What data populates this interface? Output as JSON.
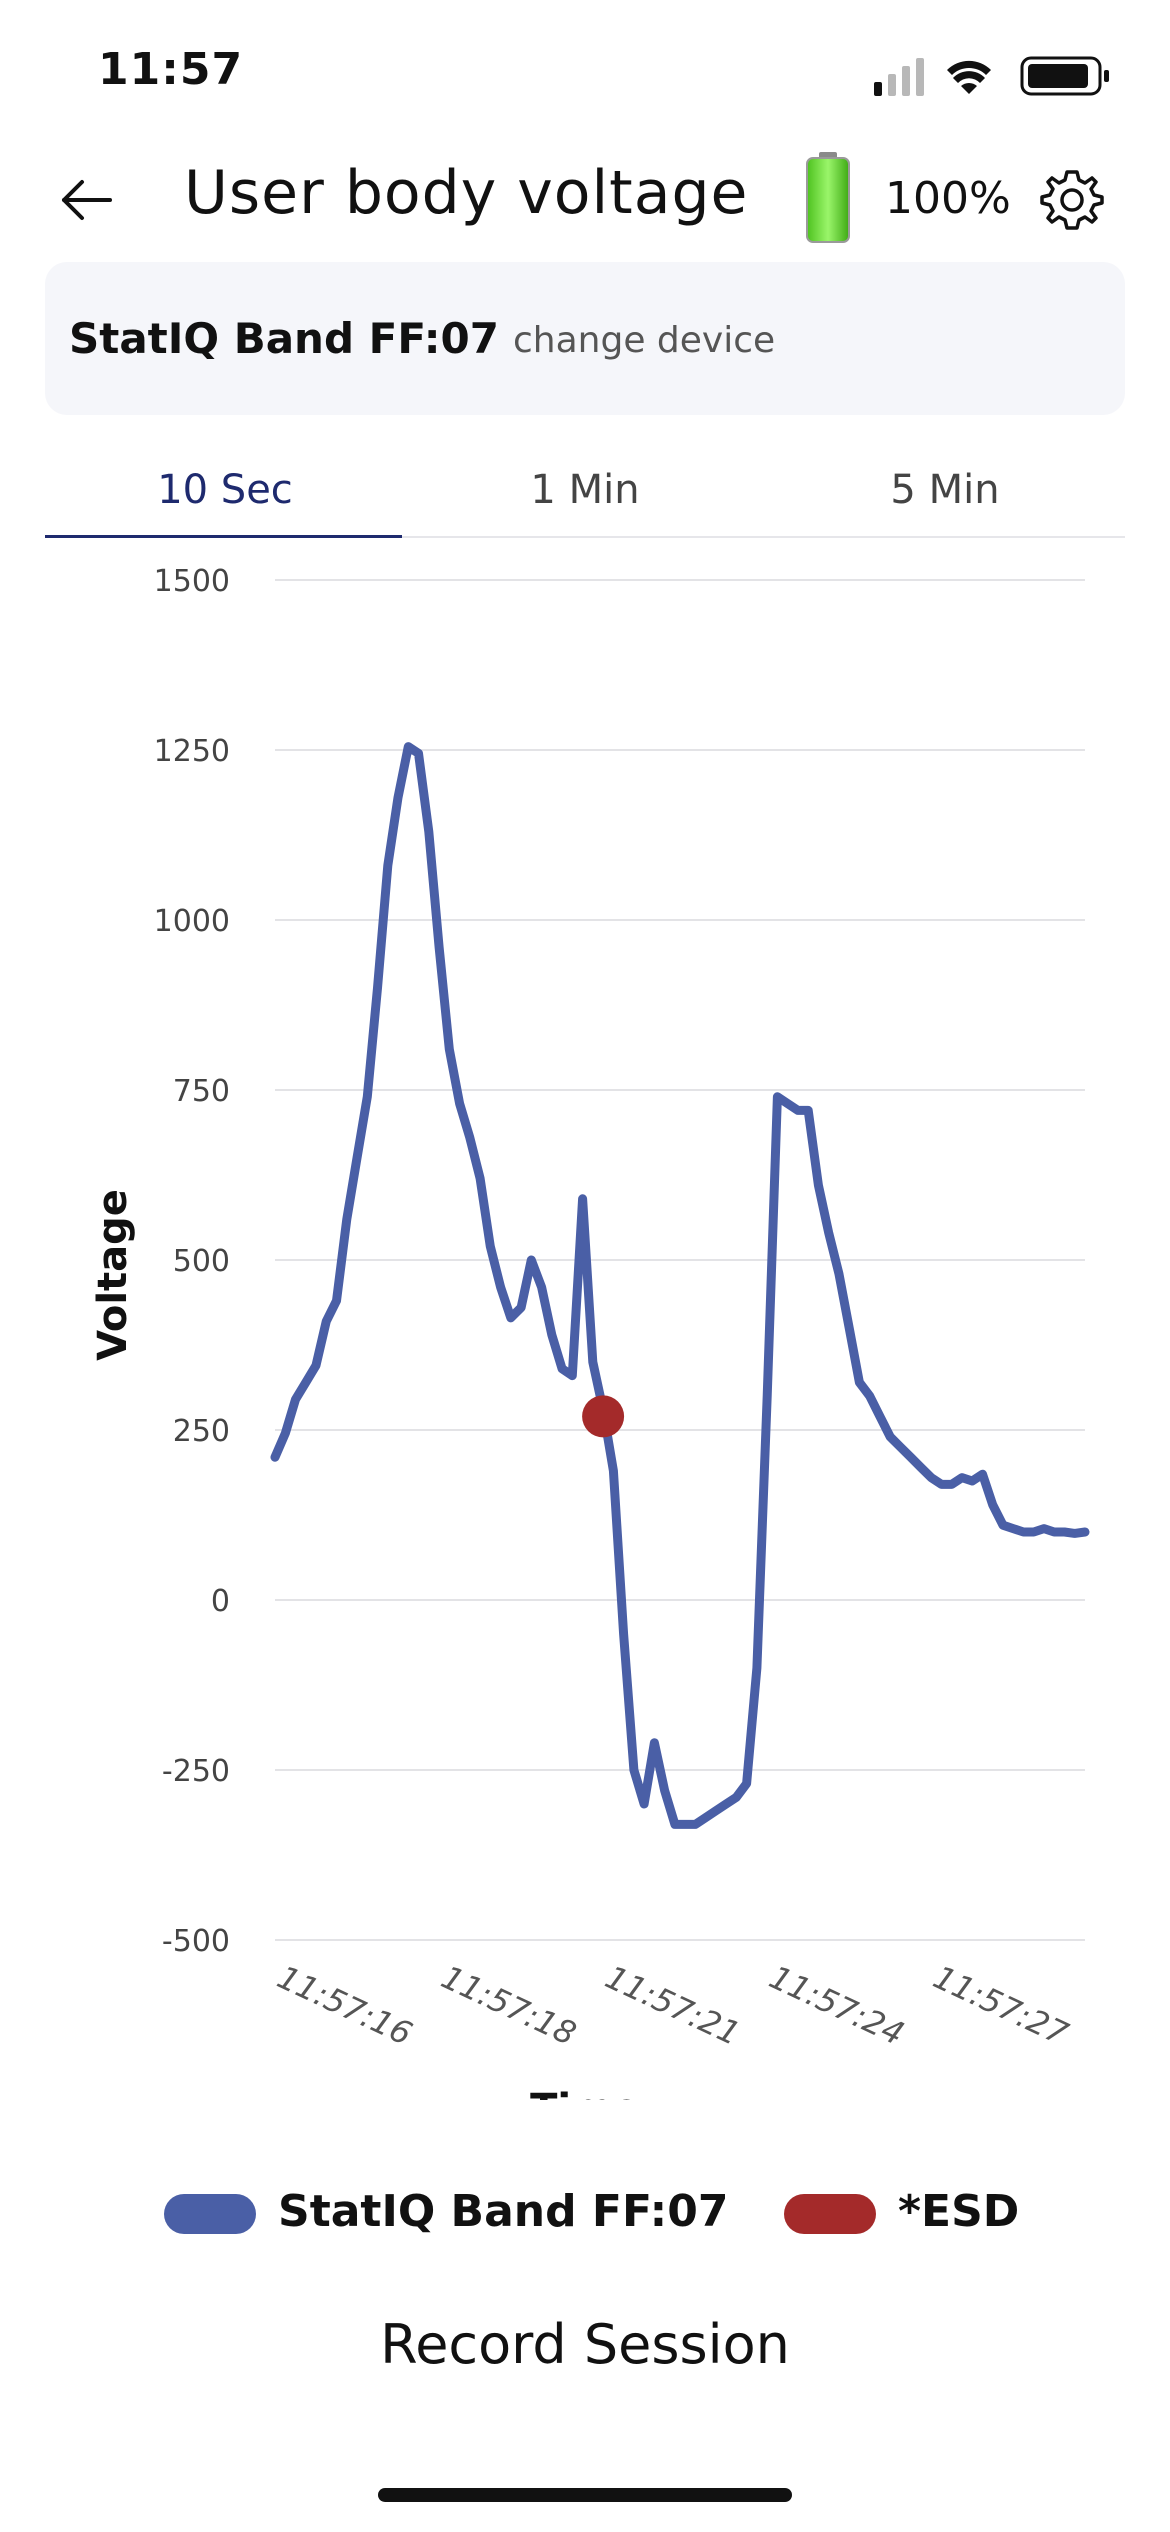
{
  "status_bar": {
    "time": "11:57"
  },
  "header": {
    "title": "User body voltage",
    "battery_percent": "100%",
    "icons": {
      "back": "back-arrow-icon",
      "battery": "battery-full-icon",
      "settings": "gear-icon"
    }
  },
  "device": {
    "name": "StatIQ Band FF:07",
    "change_label": "change device"
  },
  "tabs": [
    {
      "label": "10 Sec",
      "active": true
    },
    {
      "label": "1 Min",
      "active": false
    },
    {
      "label": "5 Min",
      "active": false
    }
  ],
  "chart_data": {
    "type": "line",
    "ylabel": "Voltage",
    "xlabel": "Time",
    "ylim": [
      -500,
      1500
    ],
    "yticks": [
      "1500",
      "1250",
      "1000",
      "750",
      "500",
      "250",
      "0",
      "-250",
      "-500"
    ],
    "xticks": [
      "11:57:16",
      "11:57:18",
      "11:57:21",
      "11:57:24",
      "11:57:27"
    ],
    "grid": true,
    "legend_position": "bottom",
    "series": [
      {
        "name": "StatIQ Band FF:07",
        "color": "#4a5fa6",
        "values": [
          210,
          245,
          295,
          320,
          345,
          410,
          440,
          560,
          650,
          740,
          900,
          1080,
          1180,
          1255,
          1245,
          1130,
          960,
          810,
          730,
          680,
          620,
          520,
          460,
          415,
          430,
          500,
          460,
          390,
          340,
          330,
          590,
          350,
          280,
          190,
          -50,
          -250,
          -300,
          -210,
          -280,
          -330,
          -330,
          -330,
          -320,
          -310,
          -300,
          -290,
          -270,
          -100,
          300,
          740,
          730,
          720,
          720,
          610,
          540,
          480,
          400,
          320,
          300,
          270,
          240,
          225,
          210,
          195,
          180,
          170,
          170,
          180,
          175,
          185,
          140,
          110,
          105,
          100,
          100,
          105,
          100,
          100,
          98,
          100
        ]
      },
      {
        "name": "*ESD",
        "color": "#a42a2a",
        "points": [
          {
            "index": 32,
            "value": 270
          }
        ]
      }
    ]
  },
  "record_label": "Record Session"
}
